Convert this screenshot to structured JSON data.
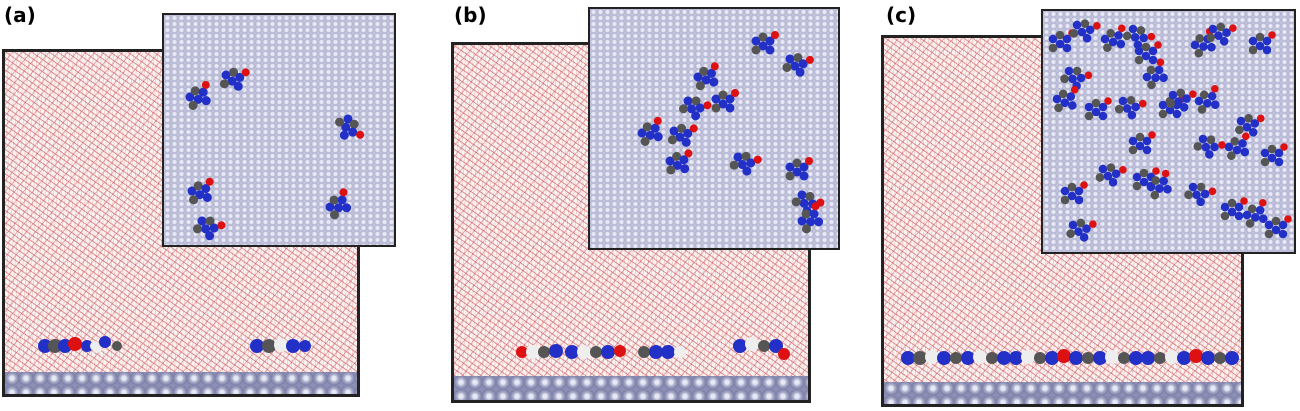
{
  "figure": {
    "panels": [
      {
        "label": "(a)",
        "molecule_count": 6
      },
      {
        "label": "(b)",
        "molecule_count": 12
      },
      {
        "label": "(c)",
        "molecule_count": 30
      }
    ],
    "colors": {
      "graphene": "#b8bad6",
      "water_oxygen": "#c0392b",
      "water_hydrogen": "#f2f2f2",
      "nitrogen": "#2230c8",
      "carbon": "#555555",
      "oxygen": "#dd1111",
      "frame": "#222222"
    }
  }
}
